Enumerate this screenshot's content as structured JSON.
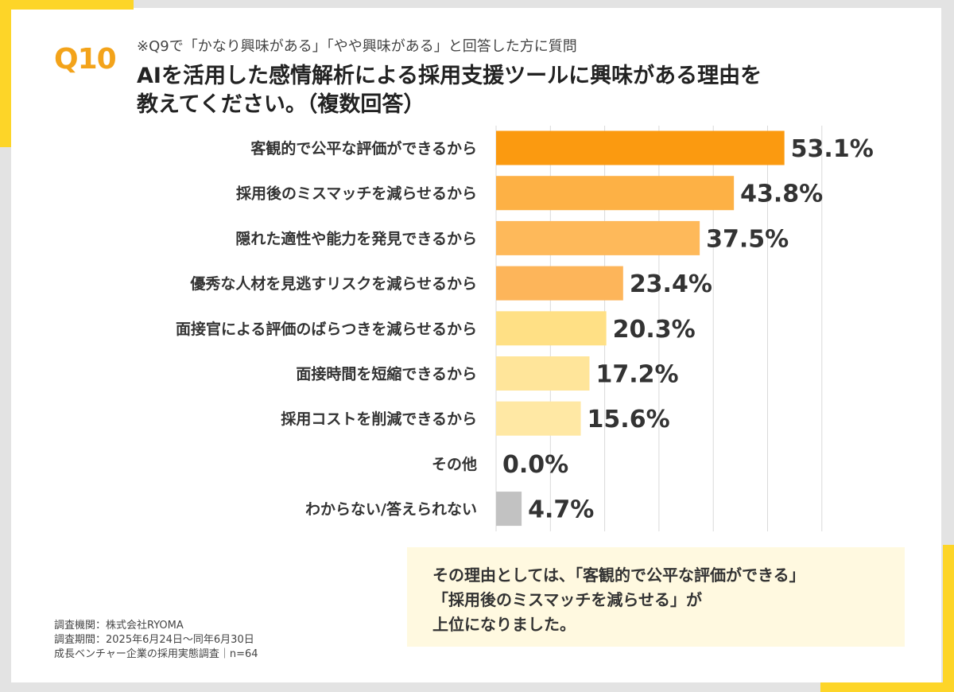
{
  "header": {
    "question_number": "Q10",
    "sub_question": "※Q9で「かなり興味がある」「やや興味がある」と回答した方に質問",
    "title_line1": "AIを活用した感情解析による採用支援ツールに興味がある理由を",
    "title_line2": "教えてください。（複数回答）"
  },
  "chart_data": {
    "type": "bar",
    "orientation": "horizontal",
    "categories": [
      "客観的で公平な評価ができるから",
      "採用後のミスマッチを減らせるから",
      "隠れた適性や能力を発見できるから",
      "優秀な人材を見逃すリスクを減らせるから",
      "面接官による評価のばらつきを減らせるから",
      "面接時間を短縮できるから",
      "採用コストを削減できるから",
      "その他",
      "わからない/答えられない"
    ],
    "values": [
      53.1,
      43.8,
      37.5,
      23.4,
      20.3,
      17.2,
      15.6,
      0.0,
      4.7
    ],
    "value_labels": [
      "53.1%",
      "43.8%",
      "37.5%",
      "23.4%",
      "20.3%",
      "17.2%",
      "15.6%",
      "0.0%",
      "4.7%"
    ],
    "bar_colors": [
      "#fb9a10",
      "#fdb145",
      "#feb95a",
      "#fdb55a",
      "#ffe085",
      "#ffe59a",
      "#ffe8a4",
      "#ffe8a4",
      "#c2c2c2"
    ],
    "xlim": [
      0,
      60
    ],
    "grid": true
  },
  "note": {
    "line1": "その理由としては、「客観的で公平な評価ができる」",
    "line2": "「採用後のミスマッチを減らせる」が",
    "line3": "上位になりました。"
  },
  "footer": {
    "line1": "調査機関：株式会社RYOMA",
    "line2": "調査期間：2025年6月24日～同年6月30日",
    "line3": "成長ベンチャー企業の採用実態調査｜n=64"
  }
}
